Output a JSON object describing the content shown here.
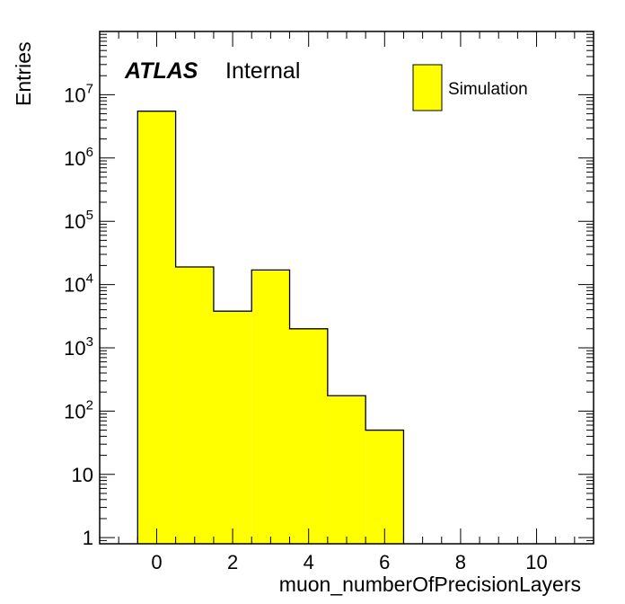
{
  "chart_data": {
    "type": "bar",
    "xlabel": "muon_numberOfPrecisionLayers",
    "ylabel": "Entries",
    "label_bold": "ATLAS",
    "label_normal": "Internal",
    "legend": {
      "entries": [
        "Simulation"
      ],
      "placement": "top-right"
    },
    "xlim": [
      -1.5,
      11.5
    ],
    "ylim": [
      0.8,
      100000000
    ],
    "log_y": true,
    "grid": false,
    "x_ticks": [
      0,
      2,
      4,
      6,
      8,
      10
    ],
    "y_ticks": [
      {
        "value": 1,
        "base": "1",
        "exp": ""
      },
      {
        "value": 10,
        "base": "10",
        "exp": ""
      },
      {
        "value": 100,
        "base": "10",
        "exp": "2"
      },
      {
        "value": 1000,
        "base": "10",
        "exp": "3"
      },
      {
        "value": 10000,
        "base": "10",
        "exp": "4"
      },
      {
        "value": 100000,
        "base": "10",
        "exp": "5"
      },
      {
        "value": 1000000,
        "base": "10",
        "exp": "6"
      },
      {
        "value": 10000000,
        "base": "10",
        "exp": "7"
      }
    ],
    "bins": [
      {
        "x": 0,
        "value": 5500000
      },
      {
        "x": 1,
        "value": 19000
      },
      {
        "x": 2,
        "value": 3800
      },
      {
        "x": 3,
        "value": 17000
      },
      {
        "x": 4,
        "value": 2000
      },
      {
        "x": 5,
        "value": 175
      },
      {
        "x": 6,
        "value": 50
      }
    ],
    "colors": {
      "fill": "#ffff00",
      "line": "#000000"
    }
  }
}
